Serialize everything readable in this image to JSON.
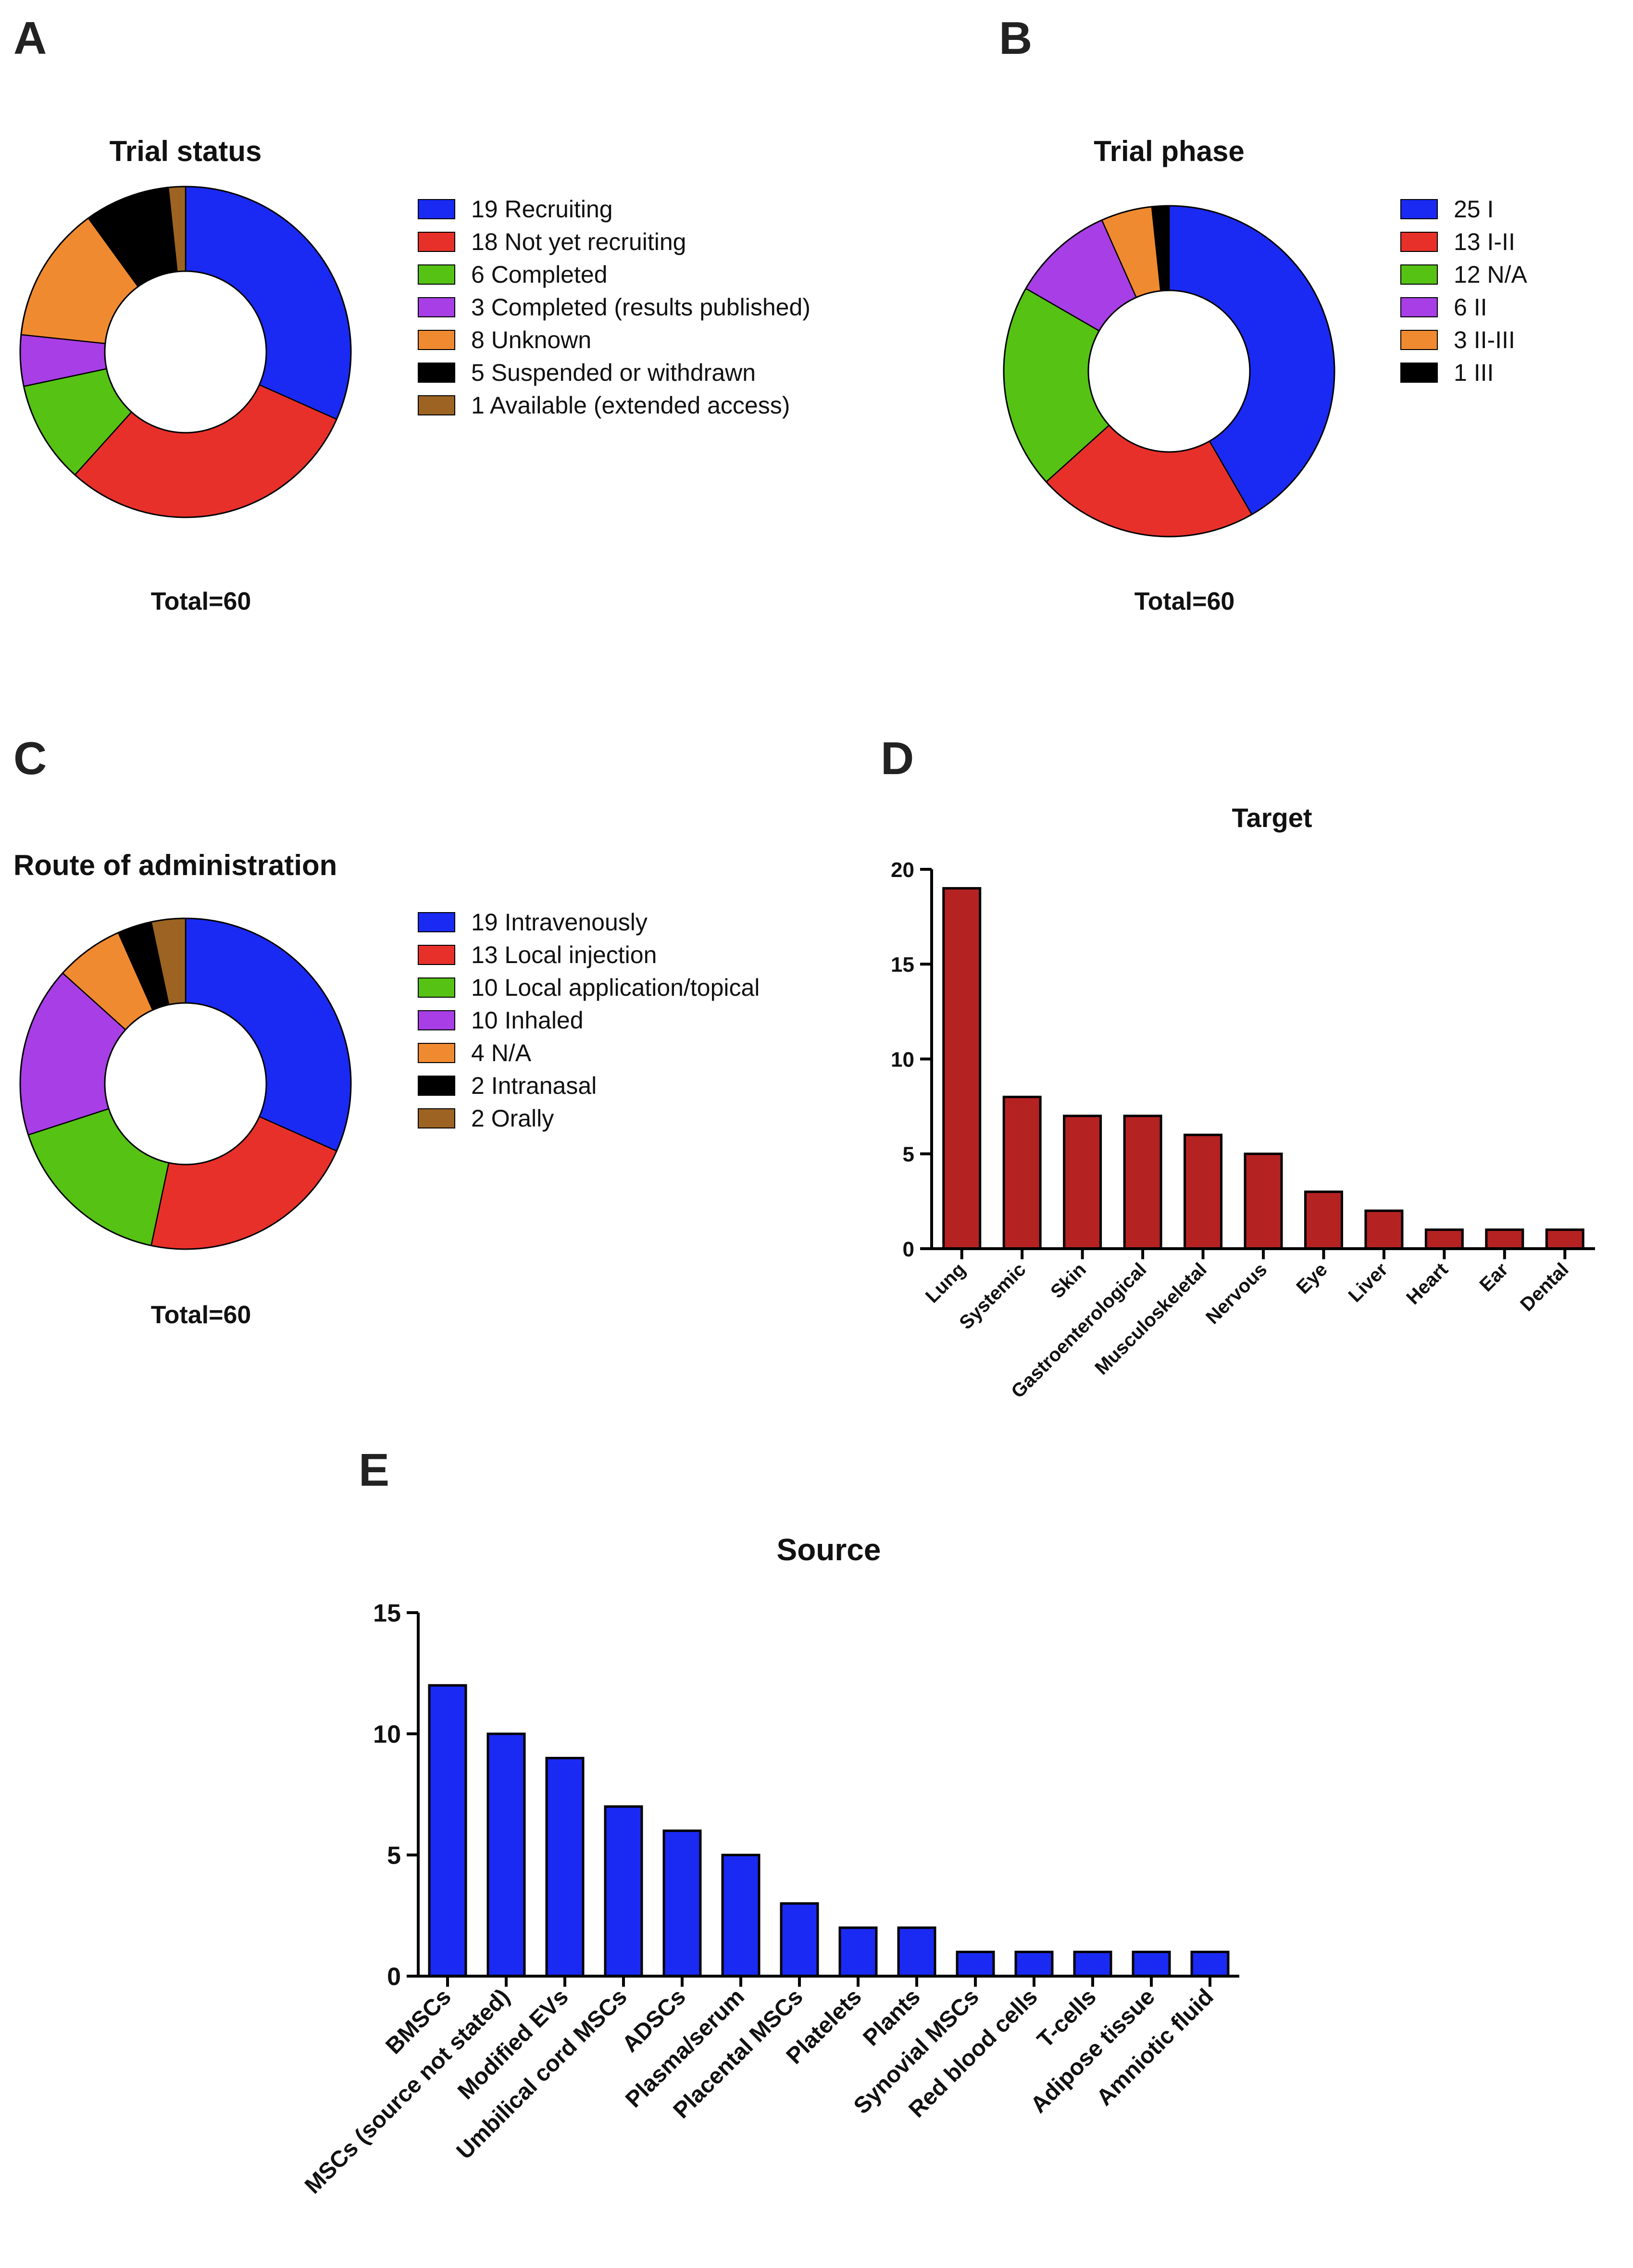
{
  "panels": {
    "a": "A",
    "b": "B",
    "c": "C",
    "d": "D",
    "e": "E"
  },
  "chart_data": [
    {
      "panel": "A",
      "type": "pie",
      "title": "Trial status",
      "total_label": "Total=60",
      "slices": [
        {
          "value": 19,
          "label": "19 Recruiting",
          "color": "#1a2af2"
        },
        {
          "value": 18,
          "label": "18 Not yet recruiting",
          "color": "#e8302a"
        },
        {
          "value": 6,
          "label": "6 Completed",
          "color": "#55c214"
        },
        {
          "value": 3,
          "label": "3 Completed (results published)",
          "color": "#a83ee6"
        },
        {
          "value": 8,
          "label": "8 Unknown",
          "color": "#f08a30"
        },
        {
          "value": 5,
          "label": "5 Suspended or withdrawn",
          "color": "#000000"
        },
        {
          "value": 1,
          "label": "1 Available (extended access)",
          "color": "#9c6322"
        }
      ]
    },
    {
      "panel": "B",
      "type": "pie",
      "title": "Trial phase",
      "total_label": "Total=60",
      "slices": [
        {
          "value": 25,
          "label": "25 I",
          "color": "#1a2af2"
        },
        {
          "value": 13,
          "label": "13 I-II",
          "color": "#e8302a"
        },
        {
          "value": 12,
          "label": "12 N/A",
          "color": "#55c214"
        },
        {
          "value": 6,
          "label": "6 II",
          "color": "#a83ee6"
        },
        {
          "value": 3,
          "label": "3 II-III",
          "color": "#f08a30"
        },
        {
          "value": 1,
          "label": "1 III",
          "color": "#000000"
        }
      ]
    },
    {
      "panel": "C",
      "type": "pie",
      "title": "Route of administration",
      "total_label": "Total=60",
      "slices": [
        {
          "value": 19,
          "label": "19 Intravenously",
          "color": "#1a2af2"
        },
        {
          "value": 13,
          "label": "13 Local injection",
          "color": "#e8302a"
        },
        {
          "value": 10,
          "label": "10 Local application/topical",
          "color": "#55c214"
        },
        {
          "value": 10,
          "label": "10 Inhaled",
          "color": "#a83ee6"
        },
        {
          "value": 4,
          "label": "4 N/A",
          "color": "#f08a30"
        },
        {
          "value": 2,
          "label": "2 Intranasal",
          "color": "#000000"
        },
        {
          "value": 2,
          "label": "2 Orally",
          "color": "#9c6322"
        }
      ]
    },
    {
      "panel": "D",
      "type": "bar",
      "title": "Target",
      "xlabel": "",
      "ylabel": "",
      "ylim": [
        0,
        20
      ],
      "yticks": [
        0,
        5,
        10,
        15,
        20
      ],
      "grid": false,
      "bar_color": "#b52222",
      "categories": [
        "Lung",
        "Systemic",
        "Skin",
        "Gastroenterological",
        "Musculoskeletal",
        "Nervous",
        "Eye",
        "Liver",
        "Heart",
        "Ear",
        "Dental"
      ],
      "values": [
        19,
        8,
        7,
        7,
        6,
        5,
        3,
        2,
        1,
        1,
        1
      ]
    },
    {
      "panel": "E",
      "type": "bar",
      "title": "Source",
      "xlabel": "",
      "ylabel": "",
      "ylim": [
        0,
        15
      ],
      "yticks": [
        0,
        5,
        10,
        15
      ],
      "grid": false,
      "bar_color": "#1a2af2",
      "categories": [
        "BMSCs",
        "MSCs (source not stated)",
        "Modified EVs",
        "Umbilical cord MSCs",
        "ADSCs",
        "Plasma/serum",
        "Placental MSCs",
        "Platelets",
        "Plants",
        "Synovial MSCs",
        "Red blood cells",
        "T-cells",
        "Adipose tissue",
        "Amniotic fluid"
      ],
      "values": [
        12,
        10,
        9,
        7,
        6,
        5,
        3,
        2,
        2,
        1,
        1,
        1,
        1,
        1
      ]
    }
  ]
}
